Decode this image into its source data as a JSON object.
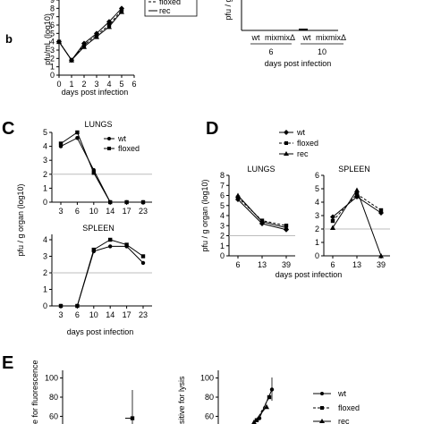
{
  "panel_labels": {
    "b": "b",
    "C": "C",
    "D": "D",
    "E": "E"
  },
  "colors": {
    "ink": "#000000",
    "reference_line": "#bdbdbd",
    "background": "#ffffff"
  },
  "chart_data": [
    {
      "id": "panel-b-left",
      "type": "line",
      "title": "",
      "xlabel": "days post infection",
      "ylabel": "pfu/mL (log10)",
      "x": [
        0,
        1,
        2,
        3,
        4,
        5
      ],
      "xticks": [
        "0",
        "1",
        "2",
        "3",
        "4",
        "5",
        "6"
      ],
      "yticks": [
        "0",
        "1",
        "2",
        "3",
        "4",
        "5",
        "6",
        "7",
        "8",
        "9"
      ],
      "ylim": [
        0,
        9
      ],
      "legend": {
        "position": "top-right",
        "entries": [
          "floxed",
          "rec"
        ]
      },
      "series": [
        {
          "name": "wt",
          "values": [
            4.0,
            1.8,
            3.8,
            5.0,
            6.4,
            8.0
          ],
          "style": "solid",
          "marker": "diamond"
        },
        {
          "name": "floxed",
          "values": [
            4.0,
            1.8,
            3.6,
            4.8,
            6.0,
            7.8
          ],
          "style": "dashed",
          "marker": "square"
        },
        {
          "name": "rec",
          "values": [
            4.0,
            1.8,
            3.4,
            4.6,
            5.8,
            7.6
          ],
          "style": "solid",
          "marker": "triangle"
        }
      ]
    },
    {
      "id": "panel-b-right",
      "type": "bar",
      "ylabel": "pfu / g",
      "categories": [
        "wt",
        "mix",
        "mixΔ",
        "wt",
        "mix",
        "mixΔ"
      ],
      "groups": [
        "6",
        "10"
      ],
      "xlabel": "days post infection",
      "values": [
        0,
        0,
        0,
        0,
        0,
        0
      ]
    },
    {
      "id": "panel-c-lungs",
      "type": "line",
      "title": "LUNGS",
      "x": [
        3,
        6,
        10,
        14,
        17,
        23
      ],
      "xticks": [
        "3",
        "6",
        "10",
        "14",
        "17",
        "23"
      ],
      "yticks": [
        "0",
        "1",
        "2",
        "3",
        "4",
        "5"
      ],
      "ylim": [
        0,
        5
      ],
      "reference_y": 2,
      "legend": {
        "position": "right",
        "entries": [
          "wt",
          "floxed"
        ]
      },
      "series": [
        {
          "name": "wt",
          "values": [
            4.0,
            4.6,
            2.3,
            0,
            0,
            0
          ],
          "marker": "circle",
          "style": "solid"
        },
        {
          "name": "floxed",
          "values": [
            4.2,
            5.0,
            2.1,
            0,
            0,
            0
          ],
          "marker": "square",
          "style": "solid"
        }
      ]
    },
    {
      "id": "panel-c-spleen",
      "type": "line",
      "title": "SPLEEN",
      "x": [
        3,
        6,
        10,
        14,
        17,
        23
      ],
      "xticks": [
        "3",
        "6",
        "10",
        "14",
        "17",
        "23"
      ],
      "yticks": [
        "0",
        "1",
        "2",
        "3",
        "4"
      ],
      "ylim": [
        0,
        4
      ],
      "reference_y": 2,
      "xlabel": "days post infection",
      "ylabel": "pfu / g organ (log10)",
      "series": [
        {
          "name": "wt",
          "values": [
            0,
            0,
            3.3,
            3.6,
            3.6,
            2.6
          ],
          "marker": "circle",
          "style": "solid"
        },
        {
          "name": "floxed",
          "values": [
            0,
            0,
            3.4,
            4.0,
            3.7,
            3.0
          ],
          "marker": "square",
          "style": "solid"
        }
      ]
    },
    {
      "id": "panel-d-lungs",
      "type": "line",
      "title": "LUNGS",
      "x": [
        6,
        13,
        39
      ],
      "xticks": [
        "6",
        "13",
        "39"
      ],
      "yticks": [
        "0",
        "1",
        "2",
        "3",
        "4",
        "5",
        "6",
        "7",
        "8"
      ],
      "ylim": [
        0,
        8
      ],
      "reference_y": 2,
      "ylabel": "pfu / g organ (log10)",
      "series": [
        {
          "name": "wt",
          "values": [
            5.6,
            3.2,
            2.6
          ],
          "style": "solid",
          "marker": "diamond"
        },
        {
          "name": "floxed",
          "values": [
            5.8,
            3.5,
            3.0
          ],
          "style": "dashed",
          "marker": "square"
        },
        {
          "name": "rec",
          "values": [
            6.0,
            3.4,
            2.8
          ],
          "style": "solid",
          "marker": "triangle"
        }
      ]
    },
    {
      "id": "panel-d-spleen",
      "type": "line",
      "title": "SPLEEN",
      "x": [
        6,
        13,
        39
      ],
      "xticks": [
        "6",
        "13",
        "39"
      ],
      "yticks": [
        "0",
        "1",
        "2",
        "3",
        "4",
        "5",
        "6"
      ],
      "ylim": [
        0,
        6
      ],
      "reference_y": 2,
      "xlabel": "days post infection",
      "legend": {
        "position": "top",
        "entries": [
          "wt",
          "floxed",
          "rec"
        ]
      },
      "series": [
        {
          "name": "wt",
          "values": [
            2.9,
            4.4,
            3.2
          ],
          "style": "solid",
          "marker": "diamond"
        },
        {
          "name": "floxed",
          "values": [
            2.6,
            4.6,
            3.4
          ],
          "style": "dashed",
          "marker": "square"
        },
        {
          "name": "rec",
          "values": [
            2.1,
            4.9,
            0
          ],
          "style": "solid",
          "marker": "triangle"
        }
      ]
    },
    {
      "id": "panel-e-left",
      "type": "line",
      "ylabel": "e for fluorescence",
      "yticks": [
        "60",
        "80",
        "100"
      ],
      "ylim": [
        52,
        108
      ],
      "x": [
        0,
        1
      ],
      "series": [
        {
          "name": "",
          "values": [
            52,
            58
          ]
        }
      ]
    },
    {
      "id": "panel-e-right",
      "type": "line",
      "ylabel": "sitive for lysis",
      "yticks": [
        "60",
        "80",
        "100"
      ],
      "ylim": [
        52,
        108
      ],
      "legend": {
        "position": "right",
        "entries": [
          "wt",
          "floxed",
          "rec"
        ]
      },
      "series": [
        {
          "name": "wt",
          "values": [
            58,
            88
          ],
          "style": "solid",
          "marker": "circle"
        },
        {
          "name": "floxed",
          "values": [
            56,
            80
          ],
          "style": "dashed",
          "marker": "square"
        },
        {
          "name": "rec",
          "values": [
            54,
            70
          ],
          "style": "solid",
          "marker": "triangle"
        }
      ]
    }
  ]
}
